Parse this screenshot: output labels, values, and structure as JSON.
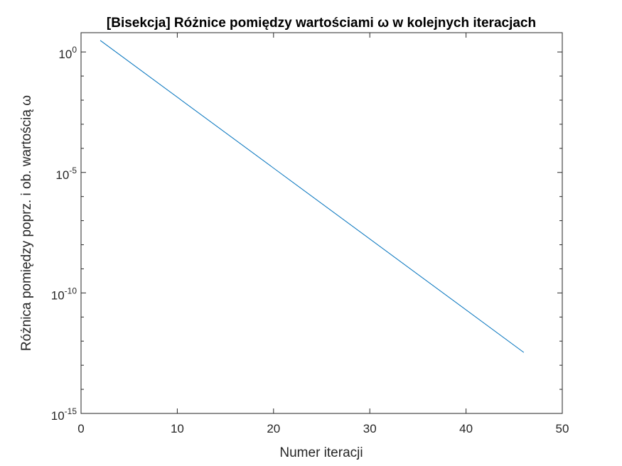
{
  "chart_data": {
    "type": "line",
    "title": "[Bisekcja] Różnice pomiędzy wartościami ω w kolejnych iteracjach",
    "xlabel": "Numer iteracji",
    "ylabel": "Różnica pomiędzy poprz. i ob. wartością ω",
    "xlim": [
      0,
      50
    ],
    "ylim_log10": [
      -15,
      0.8
    ],
    "yscale": "log",
    "grid": false,
    "x_ticks": [
      {
        "value": 0,
        "label": "0"
      },
      {
        "value": 10,
        "label": "10"
      },
      {
        "value": 20,
        "label": "20"
      },
      {
        "value": 30,
        "label": "30"
      },
      {
        "value": 40,
        "label": "40"
      },
      {
        "value": 50,
        "label": "50"
      }
    ],
    "y_ticks": [
      {
        "exp": 0,
        "base": "10",
        "sup": "0"
      },
      {
        "exp": -5,
        "base": "10",
        "sup": "-5"
      },
      {
        "exp": -10,
        "base": "10",
        "sup": "-10"
      },
      {
        "exp": -15,
        "base": "10",
        "sup": "-15"
      }
    ],
    "series": [
      {
        "color": "#0072BD",
        "x": [
          2,
          46
        ],
        "y": [
          3.0,
          3.4e-13
        ]
      }
    ]
  }
}
